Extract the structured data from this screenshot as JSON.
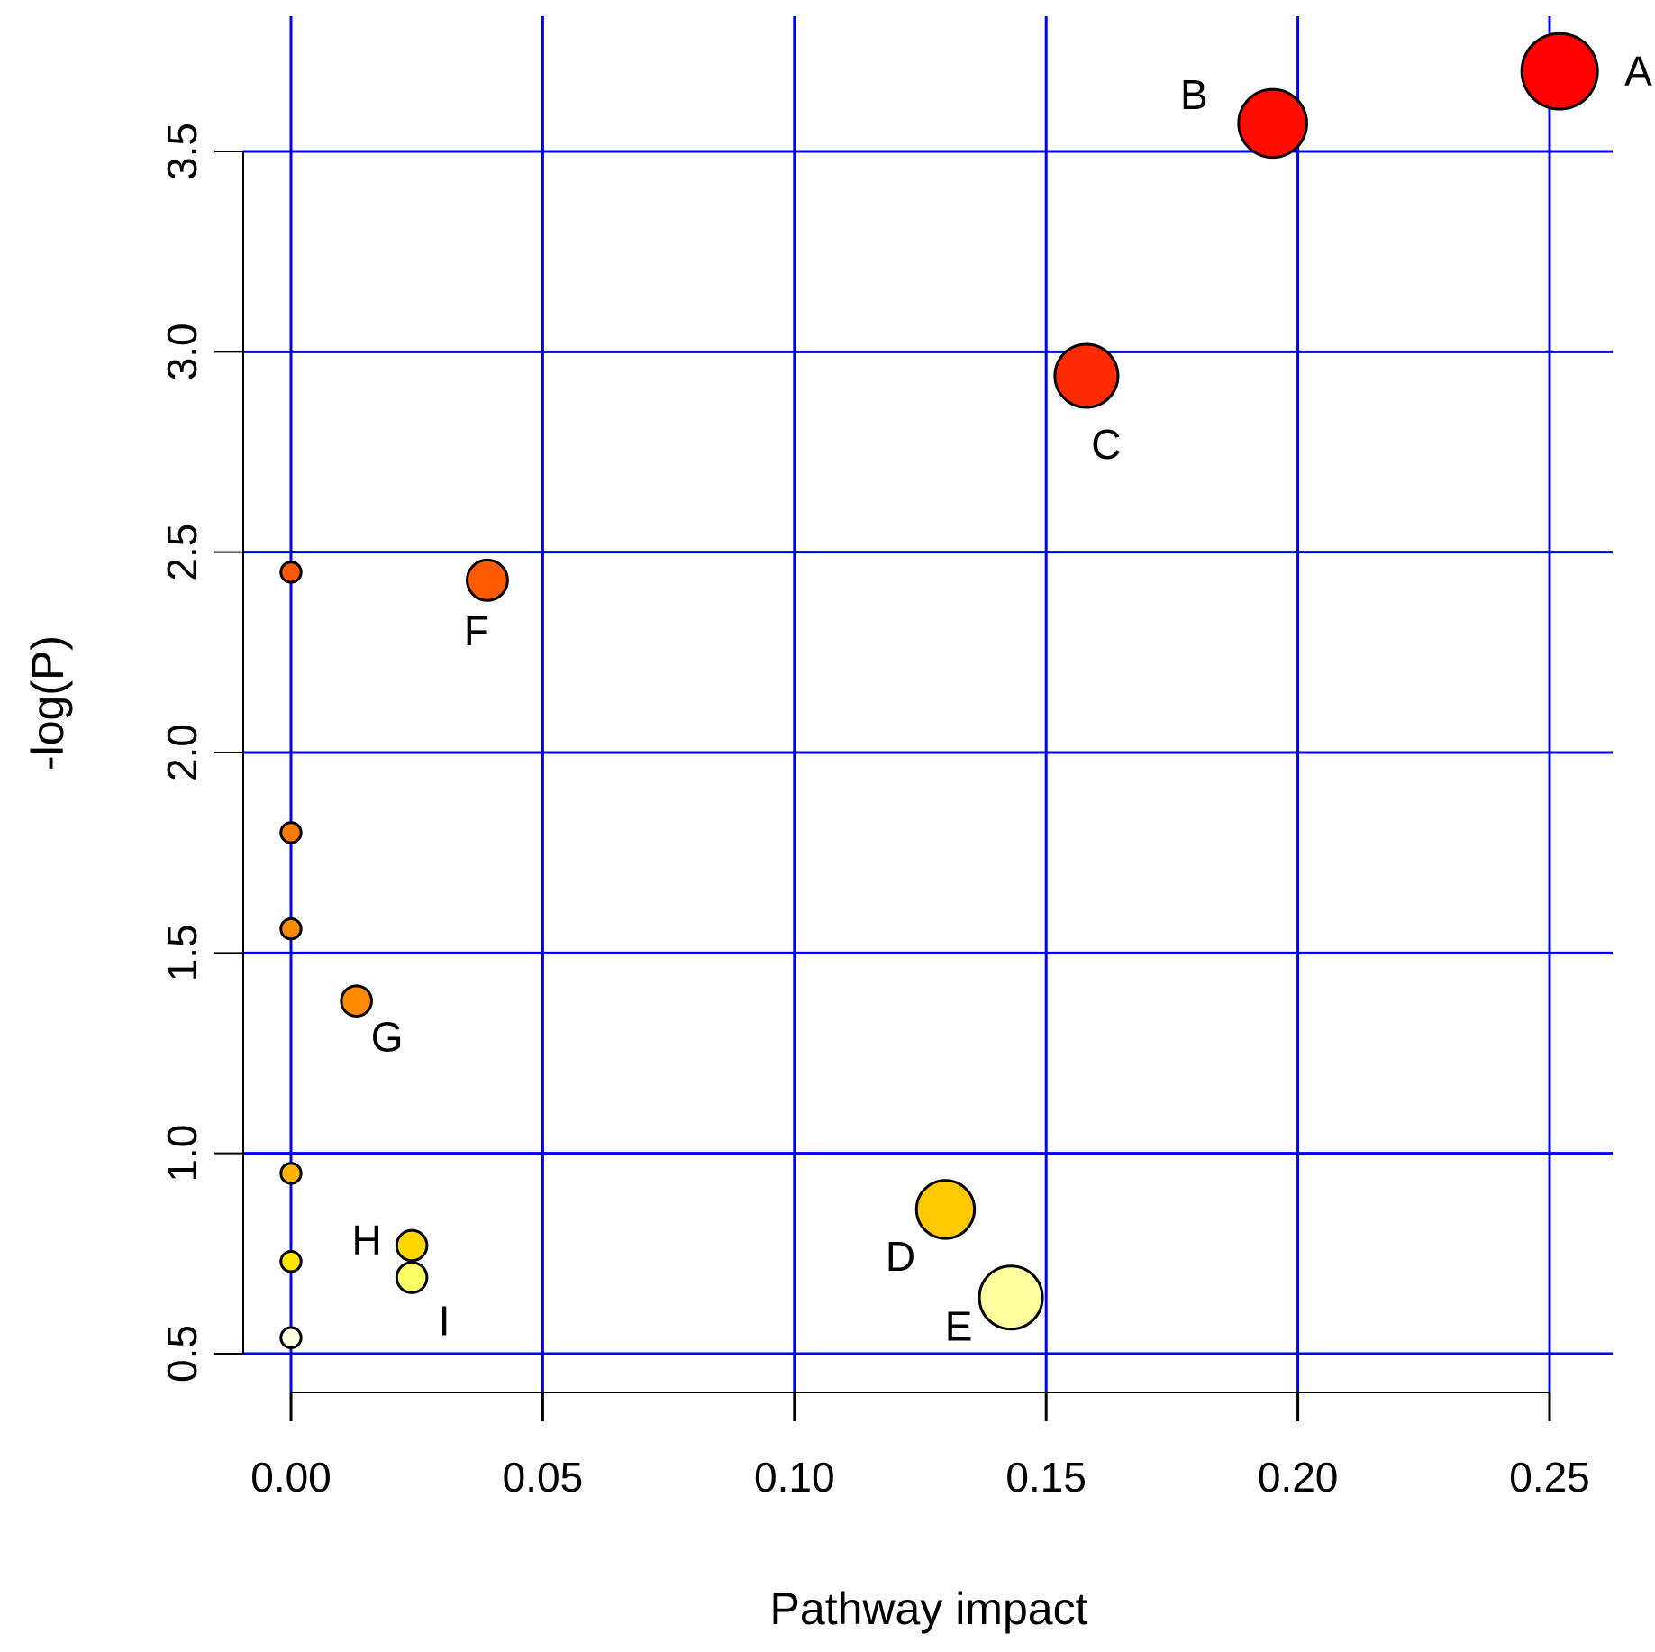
{
  "chart_data": {
    "type": "scatter",
    "title": "",
    "xlabel": "Pathway impact",
    "ylabel": "-log(P)",
    "xlim": [
      -0.01,
      0.26
    ],
    "ylim": [
      0.4,
      3.75
    ],
    "x_ticks": [
      "0.00",
      "0.05",
      "0.10",
      "0.15",
      "0.20",
      "0.25"
    ],
    "y_ticks": [
      "0.5",
      "1.0",
      "1.5",
      "2.0",
      "2.5",
      "3.0",
      "3.5"
    ],
    "grid": true,
    "grid_color": "#0000ee",
    "points": [
      {
        "label": "A",
        "x": 0.252,
        "y": 3.7,
        "color": "#ff0000",
        "size": 3.0
      },
      {
        "label": "B",
        "x": 0.195,
        "y": 3.57,
        "color": "#ff0d00",
        "size": 2.7
      },
      {
        "label": "C",
        "x": 0.158,
        "y": 2.94,
        "color": "#ff2a00",
        "size": 2.5
      },
      {
        "label": "D",
        "x": 0.13,
        "y": 0.86,
        "color": "#ffc800",
        "size": 2.3
      },
      {
        "label": "E",
        "x": 0.143,
        "y": 0.64,
        "color": "#ffffa0",
        "size": 2.5
      },
      {
        "label": "F",
        "x": 0.039,
        "y": 2.43,
        "color": "#ff5a00",
        "size": 1.6
      },
      {
        "label": "G",
        "x": 0.013,
        "y": 1.38,
        "color": "#ff8c00",
        "size": 1.2
      },
      {
        "label": "H",
        "x": 0.024,
        "y": 0.77,
        "color": "#ffd700",
        "size": 1.2
      },
      {
        "label": "I",
        "x": 0.024,
        "y": 0.69,
        "color": "#ffff66",
        "size": 1.2
      },
      {
        "label": "",
        "x": 0.0,
        "y": 2.45,
        "color": "#ff5a00",
        "size": 0.8
      },
      {
        "label": "",
        "x": 0.0,
        "y": 1.8,
        "color": "#ff7a00",
        "size": 0.8
      },
      {
        "label": "",
        "x": 0.0,
        "y": 1.56,
        "color": "#ff8c00",
        "size": 0.8
      },
      {
        "label": "",
        "x": 0.0,
        "y": 0.95,
        "color": "#ffb400",
        "size": 0.8
      },
      {
        "label": "",
        "x": 0.0,
        "y": 0.73,
        "color": "#ffe600",
        "size": 0.8
      },
      {
        "label": "",
        "x": 0.0,
        "y": 0.54,
        "color": "#ffffe0",
        "size": 0.8
      }
    ]
  }
}
